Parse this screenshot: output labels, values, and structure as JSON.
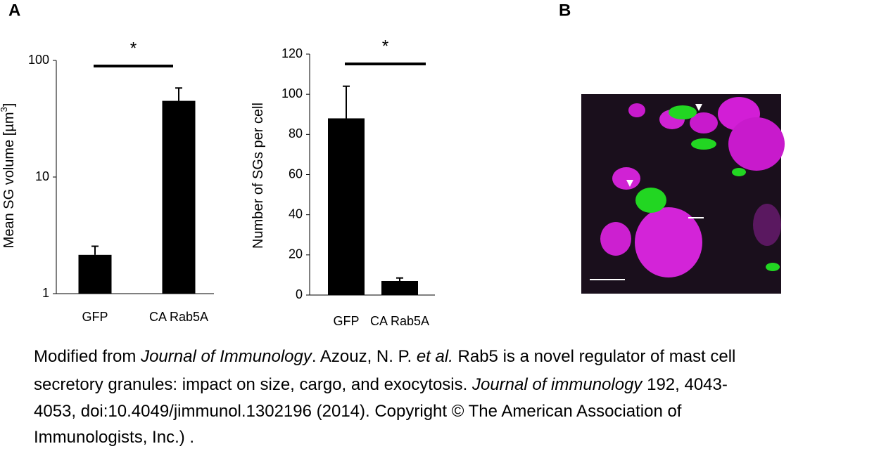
{
  "panels": [
    "A",
    "B"
  ],
  "chart_data": [
    {
      "type": "bar",
      "y_label": [
        "Mean SG volume [µm",
        "3",
        "]"
      ],
      "log_y": true,
      "categories": [
        "GFP",
        "CA Rab5A"
      ],
      "values": [
        2.15,
        45
      ],
      "errors": [
        0.4,
        13
      ],
      "color": "#000000",
      "ylim": [
        1,
        100
      ],
      "yticks": [
        1,
        10,
        100
      ],
      "significance": "*"
    },
    {
      "type": "bar",
      "y_label": [
        "Number of SGs per cell"
      ],
      "log_y": false,
      "categories": [
        "GFP",
        "CA Rab5A"
      ],
      "values": [
        88,
        7
      ],
      "errors": [
        16,
        1.5
      ],
      "color": "#000000",
      "ylim": [
        0,
        120
      ],
      "yticks": [
        0,
        20,
        40,
        60,
        80,
        100,
        120
      ],
      "significance": "*"
    }
  ],
  "caption": [
    [
      {
        "text": "Modified from ",
        "italic": false
      },
      {
        "text": "Journal of Immunology",
        "italic": true
      },
      {
        "text": ". Azouz, N. P. ",
        "italic": false
      },
      {
        "text": "et al.",
        "italic": true
      },
      {
        "text": " Rab5 is a novel regulator of mast cell",
        "italic": false
      }
    ],
    [
      {
        "text": "secretory granules: impact on size, cargo, and exocytosis. ",
        "italic": false
      },
      {
        "text": "Journal of immunology",
        "italic": true
      },
      {
        "text": " 192, 4043-",
        "italic": false
      }
    ],
    [
      {
        "text": "4053, doi:10.4049/jimmunol.1302196 (2014). Copyright © The American Association of",
        "italic": false
      }
    ],
    [
      {
        "text": "Immunologists, Inc.) .",
        "italic": false
      }
    ]
  ]
}
